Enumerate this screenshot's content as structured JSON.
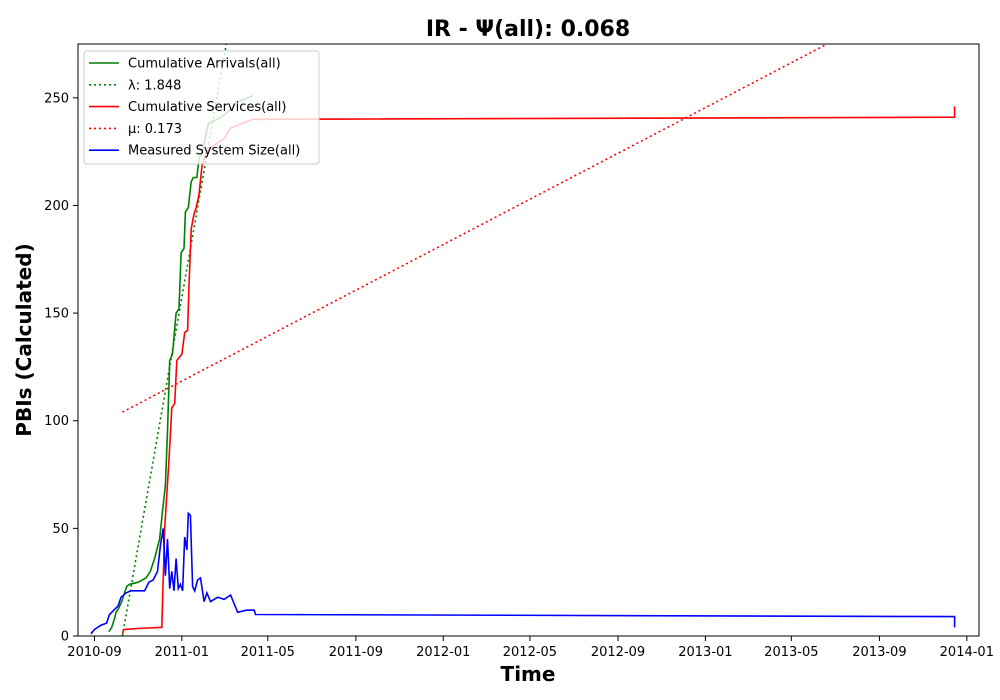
{
  "chart_data": {
    "type": "line",
    "title": "IR -  Ψ(all): 0.068",
    "xlabel": "Time",
    "ylabel": "PBIs (Calculated)",
    "xlim": [
      "2010-08-09",
      "2014-01-18"
    ],
    "ylim": [
      0,
      275
    ],
    "x_ticks": [
      "2010-09",
      "2011-01",
      "2011-05",
      "2011-09",
      "2012-01",
      "2012-05",
      "2012-09",
      "2013-01",
      "2013-05",
      "2013-09",
      "2014-01"
    ],
    "y_ticks": [
      0,
      50,
      100,
      150,
      200,
      250
    ],
    "legend_position": "top-left",
    "grid": false,
    "series": [
      {
        "name": "Cumulative Arrivals(all)",
        "color": "#008000",
        "style": "solid",
        "points": [
          [
            "2010-09-21",
            2
          ],
          [
            "2010-09-25",
            4
          ],
          [
            "2010-09-29",
            8
          ],
          [
            "2010-10-01",
            11
          ],
          [
            "2010-10-05",
            13
          ],
          [
            "2010-10-09",
            16
          ],
          [
            "2010-10-12",
            19
          ],
          [
            "2010-10-16",
            23
          ],
          [
            "2010-10-20",
            24
          ],
          [
            "2010-11-01",
            25
          ],
          [
            "2010-11-12",
            27
          ],
          [
            "2010-11-18",
            30
          ],
          [
            "2010-11-24",
            36
          ],
          [
            "2010-12-01",
            45
          ],
          [
            "2010-12-05",
            58
          ],
          [
            "2010-12-09",
            70
          ],
          [
            "2010-12-12",
            95
          ],
          [
            "2010-12-15",
            128
          ],
          [
            "2010-12-19",
            131
          ],
          [
            "2010-12-24",
            150
          ],
          [
            "2010-12-28",
            152
          ],
          [
            "2010-12-31",
            178
          ],
          [
            "2011-01-04",
            180
          ],
          [
            "2011-01-06",
            197
          ],
          [
            "2011-01-10",
            199
          ],
          [
            "2011-01-14",
            211
          ],
          [
            "2011-01-17",
            213
          ],
          [
            "2011-01-22",
            213
          ],
          [
            "2011-01-25",
            222
          ],
          [
            "2011-01-29",
            224
          ],
          [
            "2011-02-03",
            232
          ],
          [
            "2011-02-07",
            238
          ],
          [
            "2011-02-12",
            239
          ],
          [
            "2011-02-20",
            240
          ],
          [
            "2011-03-05",
            243
          ],
          [
            "2011-03-20",
            248
          ],
          [
            "2011-04-10",
            251
          ]
        ]
      },
      {
        "name": "λ: 1.848",
        "color": "#008000",
        "style": "dotted",
        "points": [
          [
            "2010-10-10",
            0
          ],
          [
            "2011-03-04",
            275
          ]
        ]
      },
      {
        "name": "Cumulative Services(all)",
        "color": "#ff0000",
        "style": "solid",
        "points": [
          [
            "2010-10-10",
            1
          ],
          [
            "2010-10-12",
            3
          ],
          [
            "2010-11-01",
            3.5
          ],
          [
            "2010-12-01",
            4
          ],
          [
            "2010-12-04",
            4
          ],
          [
            "2010-12-08",
            50
          ],
          [
            "2010-12-14",
            82
          ],
          [
            "2010-12-18",
            106
          ],
          [
            "2010-12-22",
            108
          ],
          [
            "2010-12-25",
            128
          ],
          [
            "2011-01-01",
            131
          ],
          [
            "2011-01-05",
            141
          ],
          [
            "2011-01-09",
            142
          ],
          [
            "2011-01-11",
            163
          ],
          [
            "2011-01-14",
            189
          ],
          [
            "2011-01-18",
            196
          ],
          [
            "2011-01-21",
            199
          ],
          [
            "2011-01-25",
            205
          ],
          [
            "2011-01-29",
            218
          ],
          [
            "2011-02-04",
            225
          ],
          [
            "2011-02-15",
            228
          ],
          [
            "2011-03-01",
            231
          ],
          [
            "2011-03-10",
            236
          ],
          [
            "2011-03-25",
            238
          ],
          [
            "2011-04-10",
            240
          ],
          [
            "2013-12-15",
            241
          ],
          [
            "2013-12-15",
            246
          ]
        ]
      },
      {
        "name": "μ: 0.173",
        "color": "#ff0000",
        "style": "dotted",
        "points": [
          [
            "2010-10-10",
            104
          ],
          [
            "2013-06-20",
            275
          ]
        ]
      },
      {
        "name": "Measured System Size(all)",
        "color": "#0000ff",
        "style": "solid",
        "points": [
          [
            "2010-08-27",
            1
          ],
          [
            "2010-09-01",
            3
          ],
          [
            "2010-09-10",
            5
          ],
          [
            "2010-09-18",
            6
          ],
          [
            "2010-09-22",
            10
          ],
          [
            "2010-09-28",
            12
          ],
          [
            "2010-10-04",
            14
          ],
          [
            "2010-10-08",
            18
          ],
          [
            "2010-10-15",
            20
          ],
          [
            "2010-10-22",
            21
          ],
          [
            "2010-11-10",
            21
          ],
          [
            "2010-11-16",
            25
          ],
          [
            "2010-11-22",
            26
          ],
          [
            "2010-11-28",
            30
          ],
          [
            "2010-12-02",
            42
          ],
          [
            "2010-12-06",
            50
          ],
          [
            "2010-12-09",
            28
          ],
          [
            "2010-12-12",
            45
          ],
          [
            "2010-12-15",
            22
          ],
          [
            "2010-12-18",
            30
          ],
          [
            "2010-12-21",
            21
          ],
          [
            "2010-12-24",
            36
          ],
          [
            "2010-12-27",
            22
          ],
          [
            "2010-12-30",
            24
          ],
          [
            "2011-01-02",
            21
          ],
          [
            "2011-01-05",
            46
          ],
          [
            "2011-01-08",
            40
          ],
          [
            "2011-01-10",
            57
          ],
          [
            "2011-01-13",
            56
          ],
          [
            "2011-01-16",
            23
          ],
          [
            "2011-01-19",
            21
          ],
          [
            "2011-01-23",
            26
          ],
          [
            "2011-01-27",
            27
          ],
          [
            "2011-02-01",
            16
          ],
          [
            "2011-02-05",
            20
          ],
          [
            "2011-02-10",
            16
          ],
          [
            "2011-02-20",
            18
          ],
          [
            "2011-03-01",
            17
          ],
          [
            "2011-03-10",
            19
          ],
          [
            "2011-03-20",
            11
          ],
          [
            "2011-04-01",
            12
          ],
          [
            "2011-04-12",
            12
          ],
          [
            "2011-04-14",
            10
          ],
          [
            "2013-12-15",
            9
          ],
          [
            "2013-12-15",
            4
          ]
        ]
      }
    ]
  }
}
